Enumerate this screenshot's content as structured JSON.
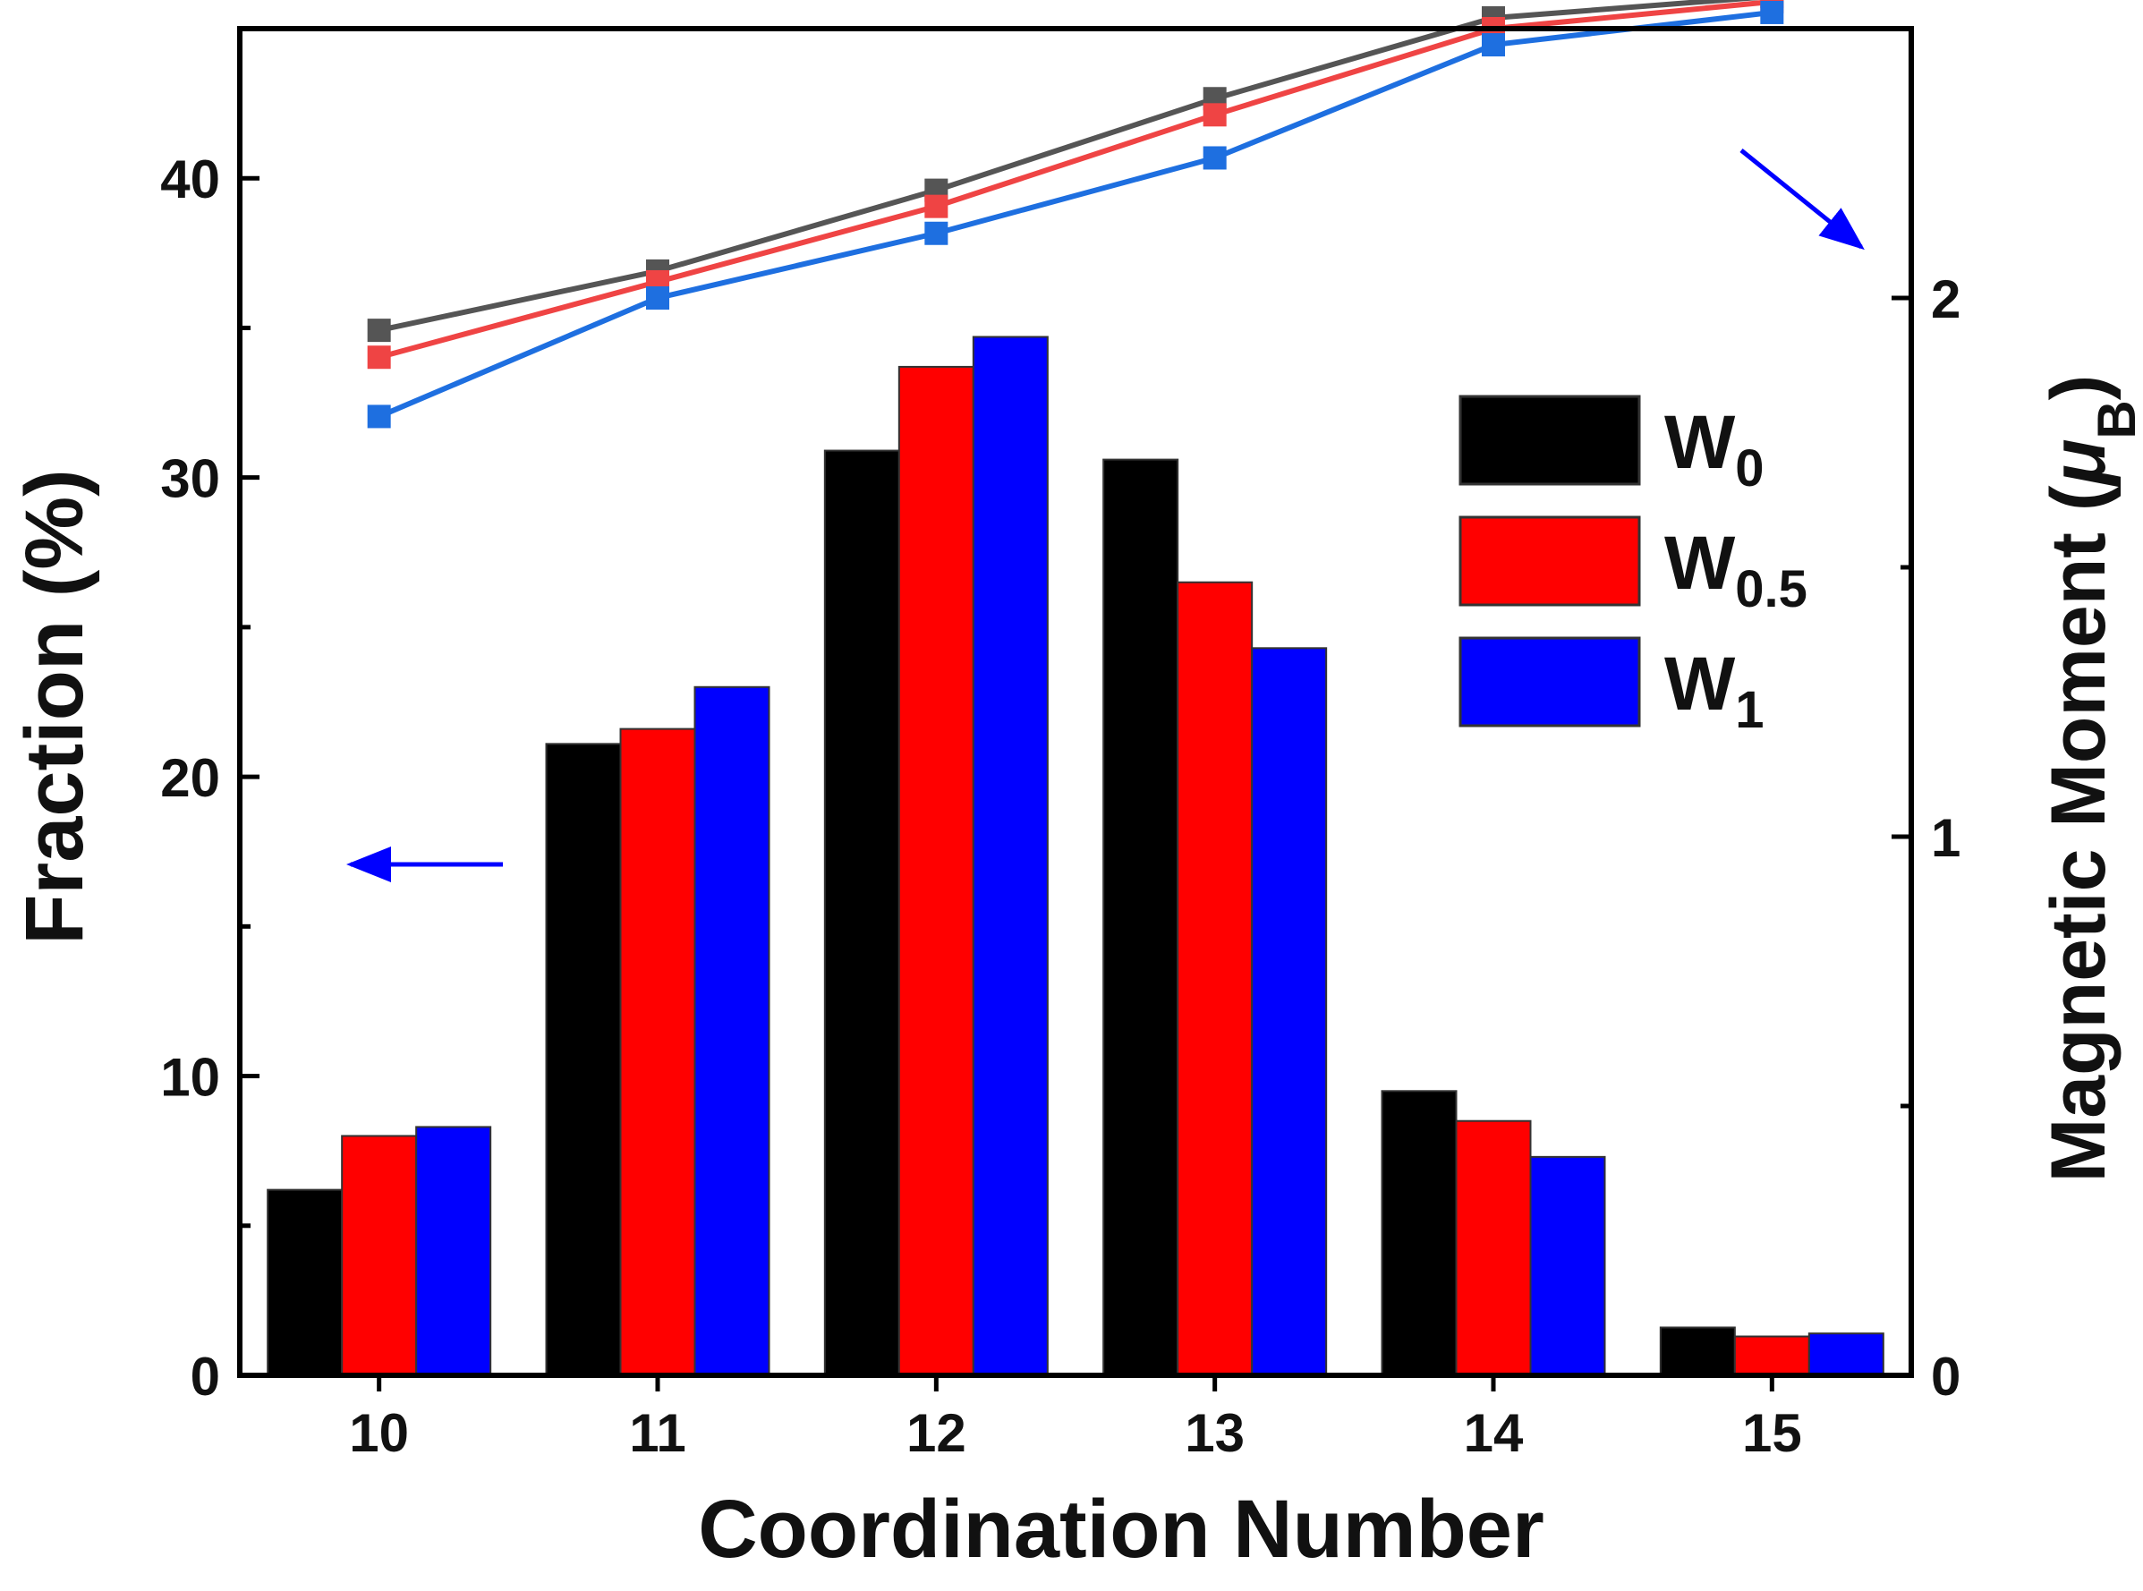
{
  "chart_data": {
    "type": "bar+line",
    "title": "",
    "xlabel": "Coordination Number",
    "ylabel_left": "Fraction (%)",
    "ylabel_right_prefix": "Magnetic Moment (",
    "ylabel_right_mu": "μ",
    "ylabel_right_sub": "B",
    "ylabel_right_suffix": ")",
    "categories": [
      "10",
      "11",
      "12",
      "13",
      "14",
      "15"
    ],
    "ylim_left": [
      0,
      45
    ],
    "yticks_left": [
      "0",
      "10",
      "20",
      "30",
      "40"
    ],
    "ylim_right": [
      0,
      2.5
    ],
    "yticks_right": [
      "0",
      "1",
      "2"
    ],
    "bar_series": [
      {
        "name": "W0",
        "base": "W",
        "sub": "0",
        "color": "#000000",
        "values": [
          6.2,
          21.1,
          30.9,
          30.6,
          9.5,
          1.6
        ]
      },
      {
        "name": "W0.5",
        "base": "W",
        "sub": "0.5",
        "color": "#ff0000",
        "values": [
          8.0,
          21.6,
          33.7,
          26.5,
          8.5,
          1.3
        ]
      },
      {
        "name": "W1",
        "base": "W",
        "sub": "1",
        "color": "#0000ff",
        "values": [
          8.3,
          23.0,
          34.7,
          24.3,
          7.3,
          1.4
        ]
      }
    ],
    "line_series": [
      {
        "name": "W0",
        "color": "#555555",
        "values": [
          1.94,
          2.05,
          2.2,
          2.37,
          2.52,
          2.56
        ]
      },
      {
        "name": "W0.5",
        "color": "#ef4444",
        "values": [
          1.89,
          2.03,
          2.17,
          2.34,
          2.5,
          2.55
        ]
      },
      {
        "name": "W1",
        "color": "#1e6fe0",
        "values": [
          1.78,
          2.0,
          2.12,
          2.26,
          2.47,
          2.53
        ]
      }
    ],
    "legend": "upper-right (bars)",
    "annotations": [
      {
        "type": "arrow",
        "direction": "left",
        "meaning": "bars refer to left axis",
        "color": "#0000ff"
      },
      {
        "type": "arrow",
        "direction": "down-right",
        "meaning": "lines refer to right axis",
        "color": "#0000ff"
      }
    ]
  }
}
